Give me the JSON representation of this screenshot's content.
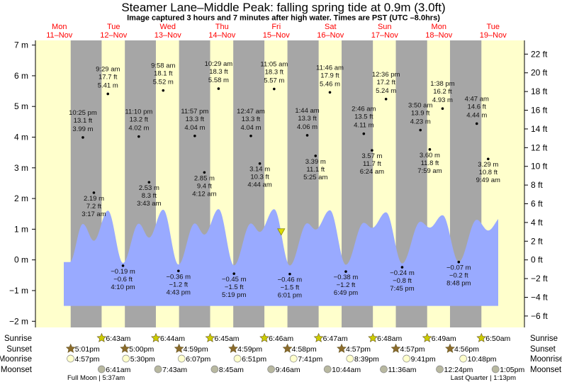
{
  "chart_data": {
    "type": "area",
    "title": "Steamer Lane–Middle Peak: falling  spring tide at 0.9m (3.0ft)",
    "subtitle": "Image captured 3 hours and 7 minutes after high water. Times are PST (UTC –8.0hrs)",
    "current_level_m": 0.9,
    "y_left": {
      "unit": "m",
      "range": [
        -2,
        7
      ],
      "ticks": [
        "−2 m",
        "−1 m",
        "0 m",
        "1 m",
        "2 m",
        "3 m",
        "4 m",
        "5 m",
        "6 m",
        "7 m"
      ],
      "values": [
        -2,
        -1,
        0,
        1,
        2,
        3,
        4,
        5,
        6,
        7
      ]
    },
    "y_right": {
      "unit": "ft",
      "ticks": [
        "−6 ft",
        "−4 ft",
        "−2 ft",
        "0 ft",
        "2 ft",
        "4 ft",
        "6 ft",
        "8 ft",
        "10 ft",
        "12 ft",
        "14 ft",
        "16 ft",
        "18 ft",
        "20 ft",
        "22 ft"
      ],
      "values": [
        -6,
        -4,
        -2,
        0,
        2,
        4,
        6,
        8,
        10,
        12,
        14,
        16,
        18,
        20,
        22
      ]
    },
    "days": [
      {
        "dow": "Mon",
        "date": "11–Nov"
      },
      {
        "dow": "Tue",
        "date": "12–Nov"
      },
      {
        "dow": "Wed",
        "date": "13–Nov"
      },
      {
        "dow": "Thu",
        "date": "14–Nov"
      },
      {
        "dow": "Fri",
        "date": "15–Nov"
      },
      {
        "dow": "Sat",
        "date": "16–Nov"
      },
      {
        "dow": "Sun",
        "date": "17–Nov"
      },
      {
        "dow": "Mon",
        "date": "18–Nov"
      },
      {
        "dow": "Tue",
        "date": "19–Nov"
      }
    ],
    "tides": [
      {
        "day": 0,
        "time": "10:25 pm",
        "type": "high",
        "m": "3.99 m",
        "ft": "13.1 ft",
        "value": 3.99
      },
      {
        "day": 1,
        "time": "3:17 am",
        "type": "low",
        "m": "2.19 m",
        "ft": "7.2 ft",
        "value": 2.19
      },
      {
        "day": 1,
        "time": "9:29 am",
        "type": "high",
        "m": "5.41 m",
        "ft": "17.7 ft",
        "value": 5.41
      },
      {
        "day": 1,
        "time": "4:10 pm",
        "type": "low",
        "m": "−0.19 m",
        "ft": "−0.6 ft",
        "value": -0.19
      },
      {
        "day": 1,
        "time": "11:10 pm",
        "type": "high",
        "m": "4.02 m",
        "ft": "13.2 ft",
        "value": 4.02
      },
      {
        "day": 2,
        "time": "3:43 am",
        "type": "low",
        "m": "2.53 m",
        "ft": "8.3 ft",
        "value": 2.53
      },
      {
        "day": 2,
        "time": "9:58 am",
        "type": "high",
        "m": "5.52 m",
        "ft": "18.1 ft",
        "value": 5.52
      },
      {
        "day": 2,
        "time": "4:43 pm",
        "type": "low",
        "m": "−0.36 m",
        "ft": "−1.2 ft",
        "value": -0.36
      },
      {
        "day": 2,
        "time": "11:57 pm",
        "type": "high",
        "m": "4.04 m",
        "ft": "13.3 ft",
        "value": 4.04
      },
      {
        "day": 3,
        "time": "4:12 am",
        "type": "low",
        "m": "2.85 m",
        "ft": "9.4 ft",
        "value": 2.85
      },
      {
        "day": 3,
        "time": "10:29 am",
        "type": "high",
        "m": "5.58 m",
        "ft": "18.3 ft",
        "value": 5.58
      },
      {
        "day": 3,
        "time": "5:19 pm",
        "type": "low",
        "m": "−0.45 m",
        "ft": "−1.5 ft",
        "value": -0.45
      },
      {
        "day": 4,
        "time": "12:47 am",
        "type": "high",
        "m": "4.04 m",
        "ft": "13.3 ft",
        "value": 4.04
      },
      {
        "day": 4,
        "time": "4:44 am",
        "type": "low",
        "m": "3.14 m",
        "ft": "10.3 ft",
        "value": 3.14
      },
      {
        "day": 4,
        "time": "11:05 am",
        "type": "high",
        "m": "5.57 m",
        "ft": "18.3 ft",
        "value": 5.57
      },
      {
        "day": 4,
        "time": "6:01 pm",
        "type": "low",
        "m": "−0.46 m",
        "ft": "−1.5 ft",
        "value": -0.46
      },
      {
        "day": 5,
        "time": "1:44 am",
        "type": "high",
        "m": "4.06 m",
        "ft": "13.3 ft",
        "value": 4.06
      },
      {
        "day": 5,
        "time": "5:25 am",
        "type": "low",
        "m": "3.39 m",
        "ft": "11.1 ft",
        "value": 3.39
      },
      {
        "day": 5,
        "time": "11:46 am",
        "type": "high",
        "m": "5.46 m",
        "ft": "17.9 ft",
        "value": 5.46
      },
      {
        "day": 5,
        "time": "6:49 pm",
        "type": "low",
        "m": "−0.38 m",
        "ft": "−1.2 ft",
        "value": -0.38
      },
      {
        "day": 6,
        "time": "2:46 am",
        "type": "high",
        "m": "4.11 m",
        "ft": "13.5 ft",
        "value": 4.11
      },
      {
        "day": 6,
        "time": "6:24 am",
        "type": "low",
        "m": "3.57 m",
        "ft": "11.7 ft",
        "value": 3.57
      },
      {
        "day": 6,
        "time": "12:36 pm",
        "type": "high",
        "m": "5.24 m",
        "ft": "17.2 ft",
        "value": 5.24
      },
      {
        "day": 6,
        "time": "7:45 pm",
        "type": "low",
        "m": "−0.24 m",
        "ft": "−0.8 ft",
        "value": -0.24
      },
      {
        "day": 7,
        "time": "3:50 am",
        "type": "high",
        "m": "4.23 m",
        "ft": "13.9 ft",
        "value": 4.23
      },
      {
        "day": 7,
        "time": "7:59 am",
        "type": "low",
        "m": "3.60 m",
        "ft": "11.8 ft",
        "value": 3.6
      },
      {
        "day": 7,
        "time": "1:38 pm",
        "type": "high",
        "m": "4.93 m",
        "ft": "16.2 ft",
        "value": 4.93
      },
      {
        "day": 7,
        "time": "8:48 pm",
        "type": "low",
        "m": "−0.07 m",
        "ft": "−0.2 ft",
        "value": -0.07
      },
      {
        "day": 8,
        "time": "4:47 am",
        "type": "high",
        "m": "4.44 m",
        "ft": "14.6 ft",
        "value": 4.44
      },
      {
        "day": 8,
        "time": "9:49 am",
        "type": "low",
        "m": "3.29 m",
        "ft": "10.8 ft",
        "value": 3.29
      }
    ],
    "colors": {
      "day": "#ffffcc",
      "night": "#a6a6a6",
      "water": "#99aaff",
      "day_labels": "#ff0000",
      "sunrise": "#cccc00",
      "sunset": "#8b6b2b",
      "moonrise": "#ffffcc",
      "moonset": "#b8b8a0"
    }
  },
  "almanac": {
    "row_labels": {
      "sunrise": "Sunrise",
      "sunset": "Sunset",
      "moonrise": "Moonrise",
      "moonset": "Moonset"
    },
    "sunrise": [
      {
        "day": 1,
        "time": "6:43am"
      },
      {
        "day": 2,
        "time": "6:44am"
      },
      {
        "day": 3,
        "time": "6:45am"
      },
      {
        "day": 4,
        "time": "6:46am"
      },
      {
        "day": 5,
        "time": "6:47am"
      },
      {
        "day": 6,
        "time": "6:48am"
      },
      {
        "day": 7,
        "time": "6:49am"
      },
      {
        "day": 8,
        "time": "6:50am"
      }
    ],
    "sunset": [
      {
        "day": 0,
        "time": "5:01pm"
      },
      {
        "day": 1,
        "time": "5:00pm"
      },
      {
        "day": 2,
        "time": "4:59pm"
      },
      {
        "day": 3,
        "time": "4:59pm"
      },
      {
        "day": 4,
        "time": "4:58pm"
      },
      {
        "day": 5,
        "time": "4:57pm"
      },
      {
        "day": 6,
        "time": "4:57pm"
      },
      {
        "day": 7,
        "time": "4:56pm"
      }
    ],
    "moonrise": [
      {
        "day": 0,
        "time": "4:57pm"
      },
      {
        "day": 1,
        "time": "5:30pm"
      },
      {
        "day": 2,
        "time": "6:07pm"
      },
      {
        "day": 3,
        "time": "6:51pm"
      },
      {
        "day": 4,
        "time": "7:41pm"
      },
      {
        "day": 5,
        "time": "8:39pm"
      },
      {
        "day": 6,
        "time": "9:41pm"
      },
      {
        "day": 7,
        "time": "10:48pm"
      }
    ],
    "moonset": [
      {
        "day": 1,
        "time": "6:41am"
      },
      {
        "day": 2,
        "time": "7:43am"
      },
      {
        "day": 3,
        "time": "8:45am"
      },
      {
        "day": 4,
        "time": "9:46am"
      },
      {
        "day": 5,
        "time": "10:44am"
      },
      {
        "day": 6,
        "time": "11:36am"
      },
      {
        "day": 7,
        "time": "12:24pm"
      },
      {
        "day": 8,
        "time": "1:05pm"
      }
    ],
    "moon_phases": [
      {
        "label": "Full Moon | 5:37am"
      },
      {
        "label": "Last Quarter | 1:13pm"
      }
    ]
  }
}
